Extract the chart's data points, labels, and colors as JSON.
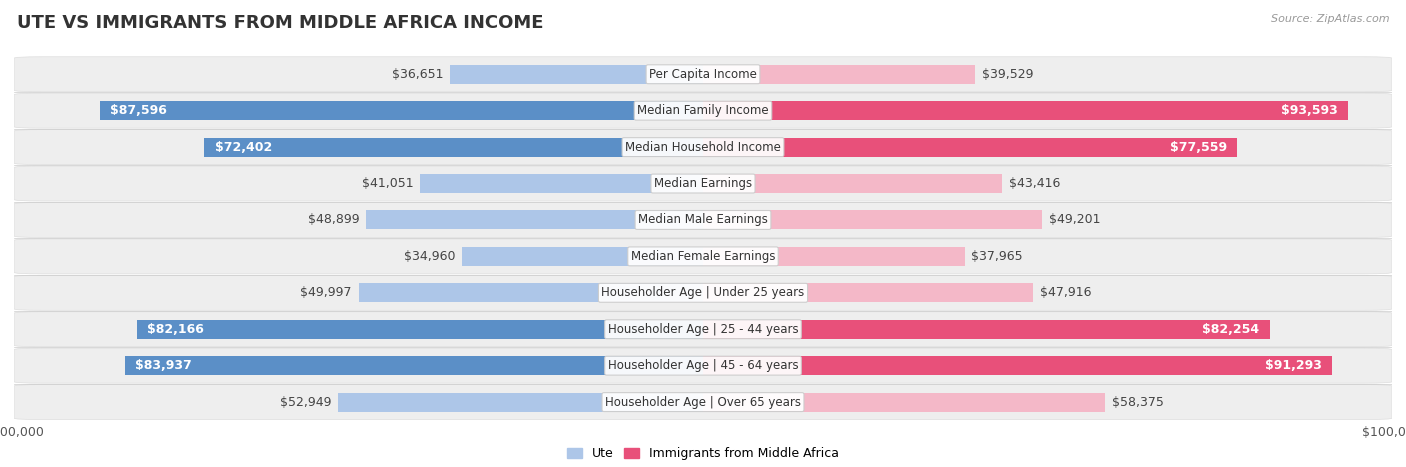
{
  "title": "UTE VS IMMIGRANTS FROM MIDDLE AFRICA INCOME",
  "source": "Source: ZipAtlas.com",
  "categories": [
    "Per Capita Income",
    "Median Family Income",
    "Median Household Income",
    "Median Earnings",
    "Median Male Earnings",
    "Median Female Earnings",
    "Householder Age | Under 25 years",
    "Householder Age | 25 - 44 years",
    "Householder Age | 45 - 64 years",
    "Householder Age | Over 65 years"
  ],
  "ute_values": [
    36651,
    87596,
    72402,
    41051,
    48899,
    34960,
    49997,
    82166,
    83937,
    52949
  ],
  "imm_values": [
    39529,
    93593,
    77559,
    43416,
    49201,
    37965,
    47916,
    82254,
    91293,
    58375
  ],
  "ute_labels": [
    "$36,651",
    "$87,596",
    "$72,402",
    "$41,051",
    "$48,899",
    "$34,960",
    "$49,997",
    "$82,166",
    "$83,937",
    "$52,949"
  ],
  "imm_labels": [
    "$39,529",
    "$93,593",
    "$77,559",
    "$43,416",
    "$49,201",
    "$37,965",
    "$47,916",
    "$82,254",
    "$91,293",
    "$58,375"
  ],
  "max_value": 100000,
  "ute_color_light": "#adc6e8",
  "ute_color_dark": "#5b8fc7",
  "imm_color_light": "#f4b8c8",
  "imm_color_dark": "#e8507a",
  "bar_height": 0.52,
  "row_bg_color": "#f0f0f0",
  "row_bg_alpha": 0.6,
  "title_fontsize": 13,
  "tick_fontsize": 9,
  "bar_label_fontsize": 9,
  "category_fontsize": 8.5,
  "legend_fontsize": 9,
  "label_threshold": 0.6
}
